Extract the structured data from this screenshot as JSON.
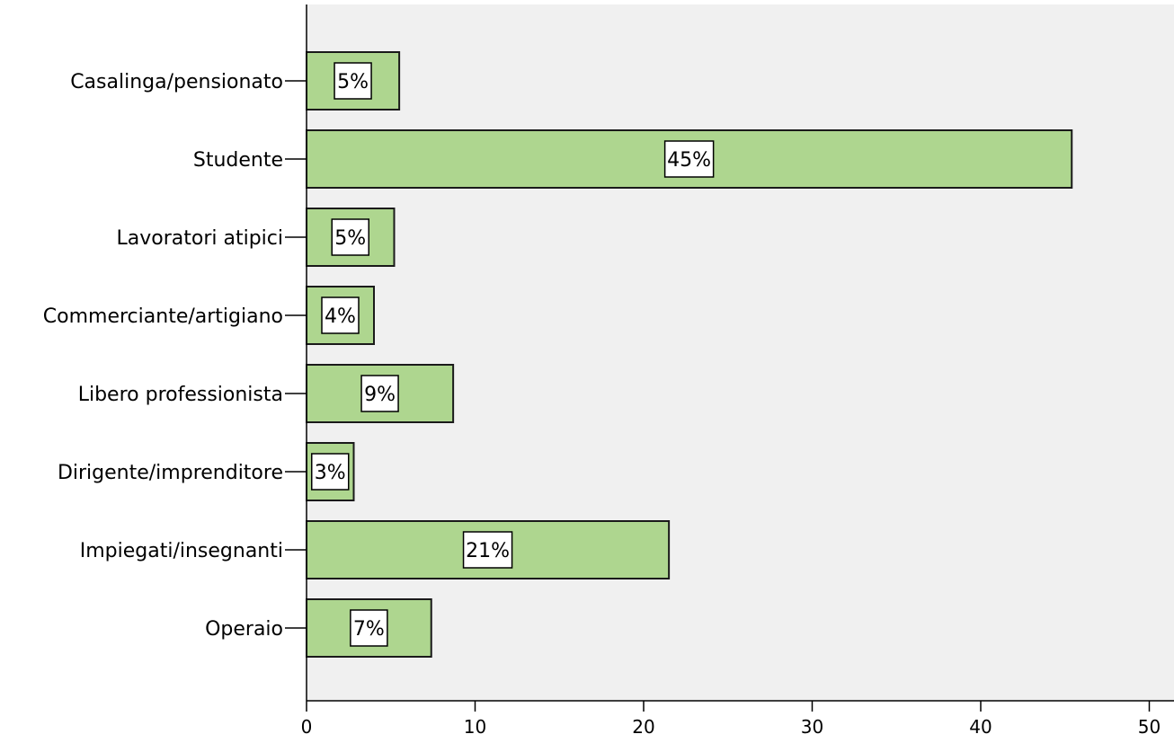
{
  "chart_data": {
    "type": "bar",
    "orientation": "horizontal",
    "title": "",
    "xlabel": "",
    "ylabel": "",
    "categories": [
      "Casalinga/pensionato",
      "Studente",
      "Lavoratori atipici",
      "Commerciante/artigiano",
      "Libero professionista",
      "Dirigente/imprenditore",
      "Impiegati/insegnanti",
      "Operaio"
    ],
    "values": [
      5.5,
      45.4,
      5.2,
      4.0,
      8.7,
      2.8,
      21.5,
      7.4
    ],
    "data_labels": [
      "5%",
      "45%",
      "5%",
      "4%",
      "9%",
      "3%",
      "21%",
      "7%"
    ],
    "xlim": [
      0,
      51.5
    ],
    "x_ticks": [
      0,
      10,
      20,
      30,
      40,
      50
    ],
    "x_tick_labels": [
      "0",
      "10",
      "20",
      "30",
      "40",
      "50"
    ],
    "grid": false,
    "legend": "none",
    "colors": {
      "bar_fill": "#aed68f",
      "bar_stroke": "#1a1a1a",
      "plot_background": "#f0f0f0",
      "label_box_fill": "#ffffff"
    }
  }
}
